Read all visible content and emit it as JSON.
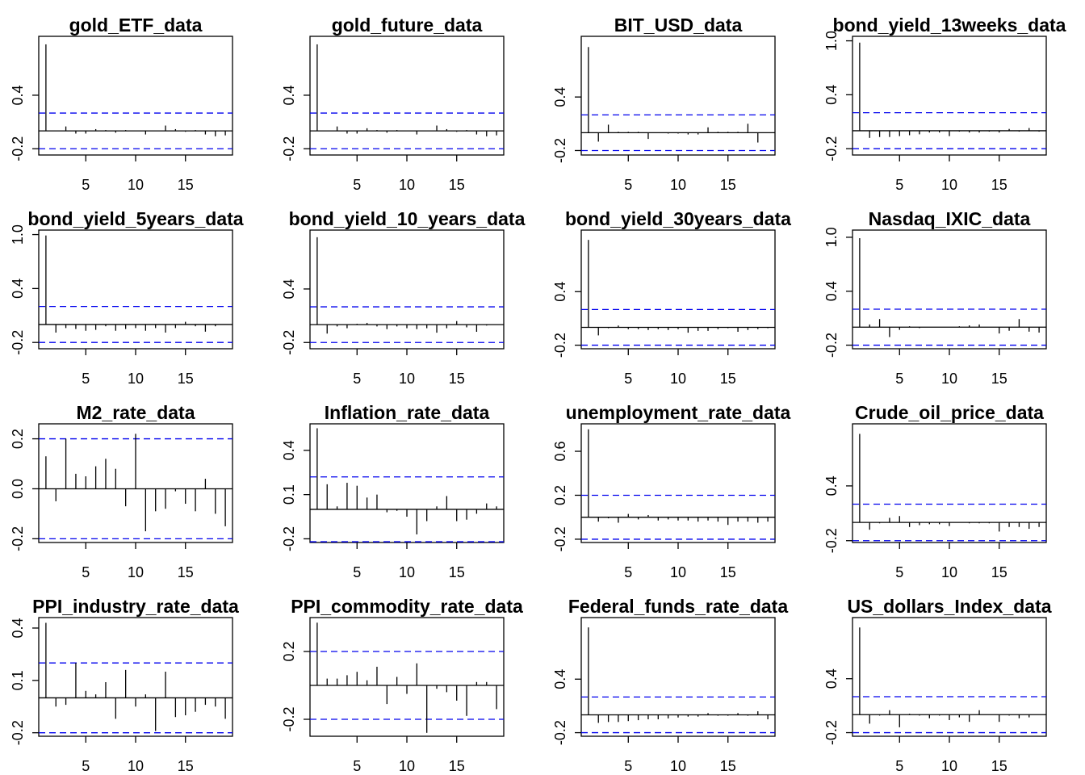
{
  "chart_data": [
    {
      "type": "bar",
      "title": "gold_ETF_data",
      "x": [
        1,
        2,
        3,
        4,
        5,
        6,
        7,
        8,
        9,
        10,
        11,
        12,
        13,
        14,
        15,
        16,
        17,
        18,
        19
      ],
      "values": [
        0.97,
        0.0,
        0.05,
        -0.03,
        -0.03,
        0.02,
        0.01,
        -0.02,
        0.01,
        0,
        -0.04,
        0,
        0.06,
        0.02,
        -0.01,
        0.01,
        -0.04,
        -0.06,
        -0.05
      ],
      "xlim": [
        0.28,
        19.72
      ],
      "xticks": [
        5,
        10,
        15
      ],
      "ylim": [
        -0.27,
        1.06
      ],
      "yticks": [
        -0.2,
        0.4
      ],
      "conf_limits": [
        0.2,
        -0.2
      ]
    },
    {
      "type": "bar",
      "title": "gold_future_data",
      "x": [
        1,
        2,
        3,
        4,
        5,
        6,
        7,
        8,
        9,
        10,
        11,
        12,
        13,
        14,
        15,
        16,
        17,
        18,
        19
      ],
      "values": [
        0.97,
        0.0,
        0.05,
        -0.03,
        -0.03,
        0.03,
        0.01,
        -0.02,
        0.01,
        0,
        -0.04,
        0,
        0.06,
        0.02,
        -0.01,
        0.01,
        -0.04,
        -0.06,
        -0.05
      ],
      "xlim": [
        0.28,
        19.72
      ],
      "xticks": [
        5,
        10,
        15
      ],
      "ylim": [
        -0.27,
        1.06
      ],
      "yticks": [
        -0.2,
        0.4
      ],
      "conf_limits": [
        0.2,
        -0.2
      ]
    },
    {
      "type": "bar",
      "title": "BIT_USD_data",
      "x": [
        1,
        2,
        3,
        4,
        5,
        6,
        7,
        8,
        9,
        10,
        11,
        12,
        13,
        14,
        15,
        16,
        17,
        18,
        19
      ],
      "values": [
        0.96,
        -0.1,
        0.09,
        0.01,
        0.01,
        0.01,
        -0.07,
        0.0,
        -0.01,
        -0.01,
        -0.02,
        -0.02,
        0.06,
        0.01,
        0.01,
        0.01,
        0.1,
        -0.11,
        0.0
      ],
      "xlim": [
        0.28,
        19.72
      ],
      "xticks": [
        5,
        10,
        15
      ],
      "ylim": [
        -0.25,
        1.08
      ],
      "yticks": [
        -0.2,
        0.4
      ],
      "conf_limits": [
        0.2,
        -0.2
      ]
    },
    {
      "type": "bar",
      "title": "bond_yield_13weeks_data",
      "x": [
        1,
        2,
        3,
        4,
        5,
        6,
        7,
        8,
        9,
        10,
        11,
        12,
        13,
        14,
        15,
        16,
        17,
        18,
        19
      ],
      "values": [
        0.98,
        -0.08,
        -0.07,
        -0.07,
        -0.06,
        -0.05,
        -0.04,
        -0.02,
        -0.02,
        -0.06,
        -0.01,
        -0.02,
        -0.02,
        -0.01,
        -0.02,
        0.02,
        -0.01,
        0.03,
        -0.01
      ],
      "xlim": [
        0.28,
        19.72
      ],
      "xticks": [
        5,
        10,
        15
      ],
      "ylim": [
        -0.27,
        1.05
      ],
      "yticks": [
        -0.2,
        0.4,
        {
          "value": 1.0,
          "label": "1.0"
        }
      ],
      "conf_limits": [
        0.2,
        -0.2
      ]
    },
    {
      "type": "bar",
      "title": "bond_yield_5years_data",
      "x": [
        1,
        2,
        3,
        4,
        5,
        6,
        7,
        8,
        9,
        10,
        11,
        12,
        13,
        14,
        15,
        16,
        17,
        18,
        19
      ],
      "values": [
        0.99,
        -0.09,
        -0.04,
        -0.05,
        -0.07,
        -0.06,
        -0.02,
        -0.07,
        -0.05,
        -0.04,
        -0.07,
        -0.04,
        -0.09,
        -0.04,
        0.03,
        -0.02,
        -0.08,
        -0.02,
        0.0
      ],
      "xlim": [
        0.28,
        19.72
      ],
      "xticks": [
        5,
        10,
        15
      ],
      "ylim": [
        -0.27,
        1.05
      ],
      "yticks": [
        -0.2,
        0.4,
        {
          "value": 1.0,
          "label": "1.0"
        }
      ],
      "conf_limits": [
        0.2,
        -0.2
      ]
    },
    {
      "type": "bar",
      "title": "bond_yield_10_years_data",
      "x": [
        1,
        2,
        3,
        4,
        5,
        6,
        7,
        8,
        9,
        10,
        11,
        12,
        13,
        14,
        15,
        16,
        17,
        18,
        19
      ],
      "values": [
        0.98,
        -0.1,
        -0.02,
        -0.04,
        0.01,
        0.02,
        -0.02,
        -0.05,
        -0.02,
        -0.04,
        -0.05,
        -0.04,
        -0.09,
        -0.04,
        0.04,
        -0.03,
        -0.08,
        -0.01,
        0.0
      ],
      "xlim": [
        0.28,
        19.72
      ],
      "xticks": [
        5,
        10,
        15
      ],
      "ylim": [
        -0.27,
        1.06
      ],
      "yticks": [
        -0.2,
        0.4
      ],
      "conf_limits": [
        0.2,
        -0.2
      ]
    },
    {
      "type": "bar",
      "title": "bond_yield_30years_data",
      "x": [
        1,
        2,
        3,
        4,
        5,
        6,
        7,
        8,
        9,
        10,
        11,
        12,
        13,
        14,
        15,
        16,
        17,
        18,
        19
      ],
      "values": [
        0.98,
        -0.09,
        -0.01,
        0.02,
        -0.02,
        -0.02,
        -0.03,
        -0.02,
        -0.03,
        -0.02,
        -0.06,
        -0.04,
        -0.04,
        -0.02,
        -0.01,
        -0.05,
        -0.03,
        -0.02,
        -0.01
      ],
      "xlim": [
        0.28,
        19.72
      ],
      "xticks": [
        5,
        10,
        15
      ],
      "ylim": [
        -0.24,
        1.09
      ],
      "yticks": [
        -0.2,
        0.4
      ],
      "conf_limits": [
        0.2,
        -0.2
      ]
    },
    {
      "type": "bar",
      "title": "Nasdaq_IXIC_data",
      "x": [
        1,
        2,
        3,
        4,
        5,
        6,
        7,
        8,
        9,
        10,
        11,
        12,
        13,
        14,
        15,
        16,
        17,
        18,
        19
      ],
      "values": [
        0.99,
        0.03,
        0.09,
        -0.11,
        -0.03,
        0.01,
        -0.01,
        0.0,
        0.0,
        0.0,
        0.01,
        0.02,
        0.03,
        0.0,
        -0.07,
        -0.04,
        0.09,
        -0.05,
        -0.06
      ],
      "xlim": [
        0.28,
        19.72
      ],
      "xticks": [
        5,
        10,
        15
      ],
      "ylim": [
        -0.24,
        1.08
      ],
      "yticks": [
        -0.2,
        0.4,
        {
          "value": 1.0,
          "label": "1.0"
        }
      ],
      "conf_limits": [
        0.2,
        -0.2
      ]
    },
    {
      "type": "bar",
      "title": "M2_rate_data",
      "x": [
        1,
        2,
        3,
        4,
        5,
        6,
        7,
        8,
        9,
        10,
        11,
        12,
        13,
        14,
        15,
        16,
        17,
        18,
        19
      ],
      "values": [
        0.13,
        -0.05,
        0.2,
        0.06,
        0.05,
        0.09,
        0.12,
        0.08,
        -0.07,
        0.22,
        -0.17,
        -0.09,
        -0.08,
        -0.01,
        -0.06,
        -0.09,
        0.04,
        -0.1,
        -0.15
      ],
      "xlim": [
        0.28,
        19.72
      ],
      "xticks": [
        5,
        10,
        15
      ],
      "ylim": [
        -0.215,
        0.26
      ],
      "yticks": [
        -0.2,
        {
          "value": 0,
          "label": "0.0"
        },
        0.2
      ],
      "conf_limits": [
        0.2,
        -0.2
      ]
    },
    {
      "type": "bar",
      "title": "Inflation_rate_data",
      "x": [
        1,
        2,
        3,
        4,
        5,
        6,
        7,
        8,
        9,
        10,
        11,
        12,
        13,
        14,
        15,
        16,
        17,
        18,
        19
      ],
      "values": [
        0.55,
        0.17,
        0.02,
        0.18,
        0.16,
        0.08,
        0.1,
        -0.02,
        -0.01,
        -0.05,
        -0.17,
        -0.08,
        0.02,
        0.09,
        -0.08,
        -0.07,
        -0.03,
        0.04,
        0.02
      ],
      "xlim": [
        0.28,
        19.72
      ],
      "xticks": [
        5,
        10,
        15
      ],
      "ylim": [
        -0.225,
        0.58
      ],
      "yticks": [
        -0.2,
        0.1,
        0.4
      ],
      "conf_limits": [
        0.22,
        -0.22
      ]
    },
    {
      "type": "bar",
      "title": "unemployment_rate_data",
      "x": [
        1,
        2,
        3,
        4,
        5,
        6,
        7,
        8,
        9,
        10,
        11,
        12,
        13,
        14,
        15,
        16,
        17,
        18,
        19
      ],
      "values": [
        0.8,
        -0.04,
        -0.01,
        -0.05,
        0.03,
        -0.02,
        0.02,
        -0.03,
        -0.02,
        -0.03,
        -0.03,
        -0.04,
        -0.03,
        -0.04,
        -0.07,
        -0.04,
        -0.04,
        -0.05,
        -0.04
      ],
      "xlim": [
        0.28,
        19.72
      ],
      "xticks": [
        5,
        10,
        15
      ],
      "ylim": [
        -0.23,
        0.85
      ],
      "yticks": [
        -0.2,
        0.2,
        0.6
      ],
      "conf_limits": [
        0.2,
        -0.2
      ]
    },
    {
      "type": "bar",
      "title": "Crude_oil_price_data",
      "x": [
        1,
        2,
        3,
        4,
        5,
        6,
        7,
        8,
        9,
        10,
        11,
        12,
        13,
        14,
        15,
        16,
        17,
        18,
        19
      ],
      "values": [
        0.97,
        -0.08,
        -0.01,
        0.05,
        0.07,
        -0.05,
        -0.03,
        -0.02,
        -0.02,
        -0.04,
        0.0,
        -0.01,
        -0.01,
        -0.01,
        -0.1,
        -0.05,
        -0.05,
        -0.07,
        -0.05
      ],
      "xlim": [
        0.28,
        19.72
      ],
      "xticks": [
        5,
        10,
        15
      ],
      "ylim": [
        -0.22,
        1.08
      ],
      "yticks": [
        -0.2,
        0.4
      ],
      "conf_limits": [
        0.2,
        -0.2
      ]
    },
    {
      "type": "bar",
      "title": "PPI_industry_rate_data",
      "x": [
        1,
        2,
        3,
        4,
        5,
        6,
        7,
        8,
        9,
        10,
        11,
        12,
        13,
        14,
        15,
        16,
        17,
        18,
        19
      ],
      "values": [
        0.43,
        -0.05,
        -0.04,
        0.2,
        0.04,
        0.02,
        0.09,
        -0.12,
        0.16,
        -0.05,
        0.02,
        -0.19,
        0.15,
        -0.11,
        -0.1,
        -0.08,
        -0.04,
        -0.05,
        -0.12
      ],
      "xlim": [
        0.28,
        19.72
      ],
      "xticks": [
        5,
        10,
        15
      ],
      "ylim": [
        -0.22,
        0.46
      ],
      "yticks": [
        -0.2,
        0.1,
        0.4
      ],
      "conf_limits": [
        0.2,
        -0.2
      ]
    },
    {
      "type": "bar",
      "title": "PPI_commodity_rate_data",
      "x": [
        1,
        2,
        3,
        4,
        5,
        6,
        7,
        8,
        9,
        10,
        11,
        12,
        13,
        14,
        15,
        16,
        17,
        18,
        19
      ],
      "values": [
        0.37,
        0.04,
        0.04,
        0.06,
        0.08,
        0.03,
        0.11,
        -0.11,
        0.05,
        -0.05,
        0.13,
        -0.28,
        -0.02,
        -0.04,
        -0.09,
        -0.18,
        0.02,
        0.02,
        -0.14
      ],
      "xlim": [
        0.28,
        19.72
      ],
      "xticks": [
        5,
        10,
        15
      ],
      "ylim": [
        -0.3,
        0.4
      ],
      "yticks": [
        -0.2,
        0.2
      ],
      "conf_limits": [
        0.2,
        -0.2
      ]
    },
    {
      "type": "bar",
      "title": "Federal_funds_rate_data",
      "x": [
        1,
        2,
        3,
        4,
        5,
        6,
        7,
        8,
        9,
        10,
        11,
        12,
        13,
        14,
        15,
        16,
        17,
        18,
        19
      ],
      "values": [
        0.98,
        -0.09,
        -0.08,
        -0.08,
        -0.07,
        -0.06,
        -0.05,
        -0.05,
        -0.04,
        -0.03,
        -0.02,
        -0.02,
        0.02,
        -0.01,
        -0.01,
        0.02,
        -0.01,
        0.04,
        -0.05
      ],
      "xlim": [
        0.28,
        19.72
      ],
      "xticks": [
        5,
        10,
        15
      ],
      "ylim": [
        -0.24,
        1.09
      ],
      "yticks": [
        -0.2,
        0.4
      ],
      "conf_limits": [
        0.2,
        -0.2
      ]
    },
    {
      "type": "bar",
      "title": "US_dollars_Index_data",
      "x": [
        1,
        2,
        3,
        4,
        5,
        6,
        7,
        8,
        9,
        10,
        11,
        12,
        13,
        14,
        15,
        16,
        17,
        18,
        19
      ],
      "values": [
        0.97,
        -0.1,
        -0.01,
        0.05,
        -0.14,
        0.01,
        -0.01,
        -0.04,
        -0.01,
        -0.06,
        -0.03,
        -0.08,
        0.05,
        0.0,
        -0.08,
        -0.01,
        -0.04,
        -0.03,
        0.0
      ],
      "xlim": [
        0.28,
        19.72
      ],
      "xticks": [
        5,
        10,
        15
      ],
      "ylim": [
        -0.24,
        1.08
      ],
      "yticks": [
        -0.2,
        0.4
      ],
      "conf_limits": [
        0.2,
        -0.2
      ]
    }
  ]
}
